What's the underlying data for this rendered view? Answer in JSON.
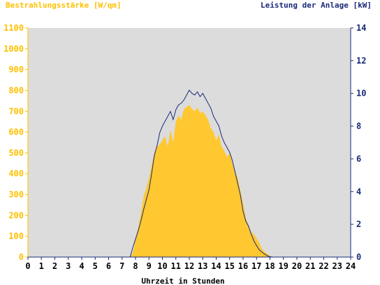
{
  "chart_data": {
    "type": "area",
    "xlabel": "Uhrzeit in Stunden",
    "ylabel_left": "Bestrahlungsstärke [W/qm]",
    "ylabel_right": "Leistung der Anlage [kW]",
    "xlim": [
      0,
      24
    ],
    "ylim_left": [
      0,
      1100
    ],
    "ylim_right": [
      0,
      14
    ],
    "x_ticks": [
      0,
      1,
      2,
      3,
      4,
      5,
      6,
      7,
      8,
      9,
      10,
      11,
      12,
      13,
      14,
      15,
      16,
      17,
      18,
      19,
      20,
      21,
      22,
      23,
      24
    ],
    "y_ticks_left": [
      0,
      100,
      200,
      300,
      400,
      500,
      600,
      700,
      800,
      900,
      1000,
      1100
    ],
    "y_ticks_right": [
      0,
      2,
      4,
      6,
      8,
      10,
      12,
      14
    ],
    "grid": false,
    "legend": "none",
    "colors": {
      "irradiance": "#ffc830",
      "power": "#1a2a7a",
      "plot_bg": "#dcdcdc",
      "left_axis": "#ffc000",
      "right_axis": "#1a2a7a"
    },
    "series": [
      {
        "name": "Bestrahlungsstärke [W/qm]",
        "axis": "left",
        "x": [
          0,
          7.6,
          7.8,
          8.0,
          8.2,
          8.4,
          8.6,
          8.8,
          9.0,
          9.2,
          9.4,
          9.6,
          9.8,
          10.0,
          10.2,
          10.4,
          10.6,
          10.8,
          11.0,
          11.2,
          11.4,
          11.6,
          11.8,
          12.0,
          12.2,
          12.4,
          12.6,
          12.8,
          13.0,
          13.2,
          13.4,
          13.6,
          13.8,
          14.0,
          14.2,
          14.4,
          14.6,
          14.8,
          15.0,
          15.2,
          15.4,
          15.6,
          15.8,
          16.0,
          16.2,
          16.4,
          16.6,
          16.8,
          17.0,
          17.2,
          17.4,
          17.6,
          17.8,
          18.0,
          18.2,
          24
        ],
        "values": [
          0,
          0,
          20,
          90,
          140,
          210,
          290,
          330,
          380,
          440,
          500,
          530,
          540,
          560,
          580,
          530,
          610,
          550,
          650,
          680,
          660,
          710,
          720,
          730,
          710,
          700,
          720,
          690,
          700,
          680,
          660,
          620,
          600,
          560,
          590,
          530,
          510,
          480,
          500,
          450,
          410,
          380,
          320,
          260,
          190,
          150,
          120,
          110,
          90,
          70,
          40,
          25,
          15,
          5,
          0,
          0
        ]
      },
      {
        "name": "Leistung der Anlage [kW]",
        "axis": "right",
        "x": [
          0,
          7.6,
          7.8,
          8.0,
          8.2,
          8.4,
          8.6,
          8.8,
          9.0,
          9.2,
          9.4,
          9.6,
          9.8,
          10.0,
          10.2,
          10.4,
          10.6,
          10.8,
          11.0,
          11.2,
          11.4,
          11.6,
          11.8,
          12.0,
          12.2,
          12.4,
          12.6,
          12.8,
          13.0,
          13.2,
          13.4,
          13.6,
          13.8,
          14.0,
          14.2,
          14.4,
          14.6,
          14.8,
          15.0,
          15.2,
          15.4,
          15.6,
          15.8,
          16.0,
          16.2,
          16.4,
          16.6,
          16.8,
          17.0,
          17.2,
          17.4,
          17.6,
          17.8,
          18.0,
          18.2,
          24
        ],
        "values": [
          0,
          0,
          0.6,
          1.1,
          1.6,
          2.2,
          2.9,
          3.5,
          4.1,
          5.1,
          6.2,
          6.8,
          7.6,
          8.0,
          8.3,
          8.6,
          8.9,
          8.4,
          9.0,
          9.3,
          9.4,
          9.6,
          9.9,
          10.2,
          10.0,
          9.9,
          10.1,
          9.8,
          10.0,
          9.7,
          9.4,
          9.1,
          8.6,
          8.3,
          8.0,
          7.4,
          7.0,
          6.7,
          6.4,
          5.9,
          5.2,
          4.5,
          3.8,
          2.8,
          2.2,
          1.9,
          1.4,
          1.0,
          0.7,
          0.45,
          0.3,
          0.18,
          0.08,
          0.02,
          0,
          0
        ]
      }
    ]
  }
}
